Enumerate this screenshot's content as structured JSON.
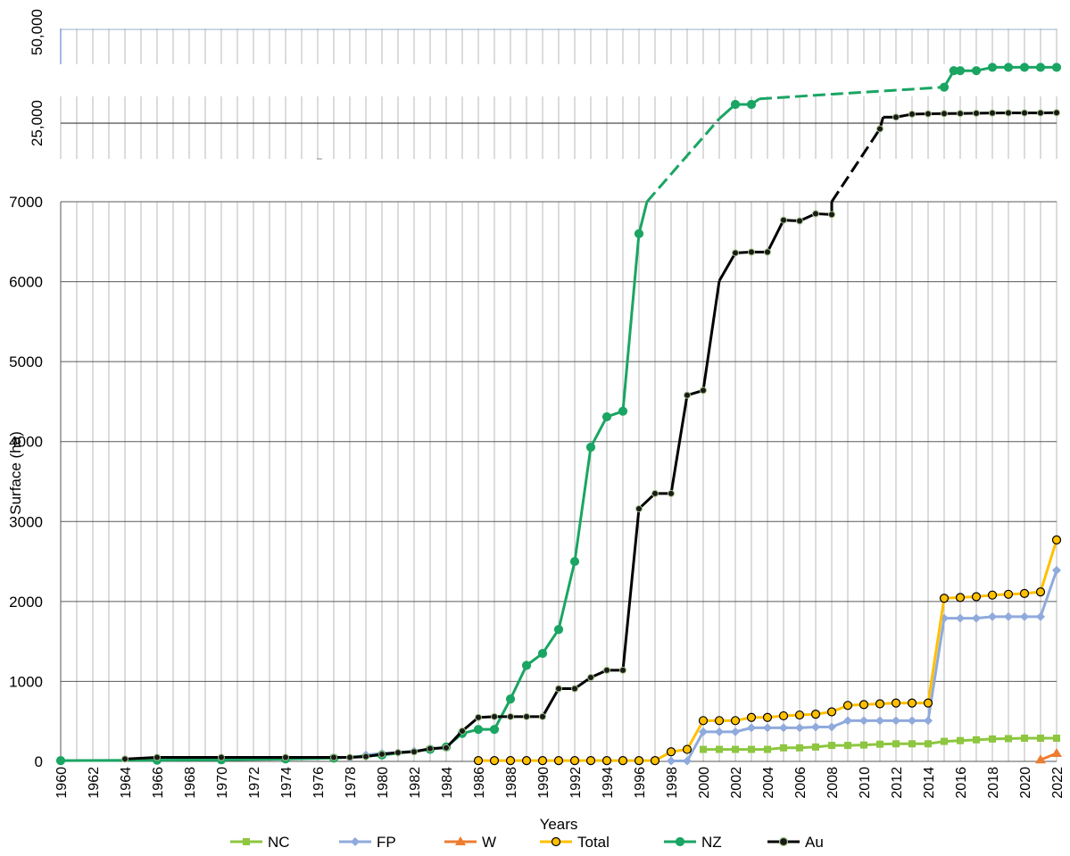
{
  "chart_data": {
    "type": "line",
    "xlabel": "Years",
    "ylabel": "Surface (ha)",
    "x_ticks": [
      "1960",
      "1962",
      "1964",
      "1966",
      "1968",
      "1970",
      "1972",
      "1974",
      "1976",
      "1978",
      "1980",
      "1982",
      "1984",
      "1986",
      "1988",
      "1990",
      "1992",
      "1994",
      "1996",
      "1998",
      "2000",
      "2002",
      "2004",
      "2006",
      "2008",
      "2010",
      "2012",
      "2014",
      "2016",
      "2018",
      "2020",
      "2022"
    ],
    "y_ticks_lower": [
      "0",
      "1000",
      "2000",
      "3000",
      "4000",
      "5000",
      "6000",
      "7000"
    ],
    "y_ticks_upper": [
      "25,000",
      "50,000"
    ],
    "axis_break": true,
    "ylim_lower": [
      0,
      7000
    ],
    "ylim_upper": [
      25000,
      50000
    ],
    "legend_position": "bottom",
    "colors": {
      "NC": "#8dc63f",
      "FP": "#8faadc",
      "W": "#ed7d31",
      "Total": "#ffc000",
      "NZ": "#1aa563",
      "Au": "#000000"
    },
    "series": [
      {
        "name": "NC",
        "points": [
          [
            2000,
            150
          ],
          [
            2001,
            150
          ],
          [
            2002,
            150
          ],
          [
            2003,
            150
          ],
          [
            2004,
            150
          ],
          [
            2005,
            170
          ],
          [
            2006,
            170
          ],
          [
            2007,
            180
          ],
          [
            2008,
            200
          ],
          [
            2009,
            200
          ],
          [
            2010,
            205
          ],
          [
            2011,
            215
          ],
          [
            2012,
            220
          ],
          [
            2013,
            220
          ],
          [
            2014,
            220
          ],
          [
            2015,
            250
          ],
          [
            2016,
            260
          ],
          [
            2017,
            270
          ],
          [
            2018,
            280
          ],
          [
            2019,
            285
          ],
          [
            2020,
            290
          ],
          [
            2021,
            290
          ],
          [
            2022,
            290
          ]
        ]
      },
      {
        "name": "FP",
        "points": [
          [
            1978,
            40
          ],
          [
            1979,
            80
          ],
          [
            1980,
            100
          ],
          [
            1981,
            110
          ],
          [
            1982,
            130
          ],
          [
            1983,
            150
          ],
          [
            1998,
            5
          ],
          [
            1999,
            5
          ],
          [
            2000,
            370
          ],
          [
            2001,
            370
          ],
          [
            2002,
            370
          ],
          [
            2003,
            420
          ],
          [
            2004,
            420
          ],
          [
            2005,
            420
          ],
          [
            2006,
            420
          ],
          [
            2007,
            430
          ],
          [
            2008,
            430
          ],
          [
            2009,
            510
          ],
          [
            2010,
            510
          ],
          [
            2011,
            510
          ],
          [
            2012,
            510
          ],
          [
            2013,
            510
          ],
          [
            2014,
            510
          ],
          [
            2015,
            1790
          ],
          [
            2016,
            1790
          ],
          [
            2017,
            1790
          ],
          [
            2018,
            1810
          ],
          [
            2019,
            1810
          ],
          [
            2020,
            1810
          ],
          [
            2021,
            1810
          ],
          [
            2022,
            2390
          ]
        ]
      },
      {
        "name": "W",
        "points": [
          [
            2021,
            20
          ],
          [
            2022,
            100
          ]
        ]
      },
      {
        "name": "Total",
        "points": [
          [
            1986,
            10
          ],
          [
            1987,
            10
          ],
          [
            1988,
            10
          ],
          [
            1989,
            10
          ],
          [
            1990,
            10
          ],
          [
            1991,
            10
          ],
          [
            1992,
            10
          ],
          [
            1993,
            10
          ],
          [
            1994,
            10
          ],
          [
            1995,
            10
          ],
          [
            1996,
            10
          ],
          [
            1997,
            10
          ],
          [
            1998,
            120
          ],
          [
            1999,
            150
          ],
          [
            2000,
            510
          ],
          [
            2001,
            510
          ],
          [
            2002,
            510
          ],
          [
            2003,
            550
          ],
          [
            2004,
            550
          ],
          [
            2005,
            570
          ],
          [
            2006,
            580
          ],
          [
            2007,
            590
          ],
          [
            2008,
            620
          ],
          [
            2009,
            700
          ],
          [
            2010,
            710
          ],
          [
            2011,
            720
          ],
          [
            2012,
            730
          ],
          [
            2013,
            730
          ],
          [
            2014,
            730
          ],
          [
            2015,
            2040
          ],
          [
            2016,
            2050
          ],
          [
            2017,
            2060
          ],
          [
            2018,
            2080
          ],
          [
            2019,
            2090
          ],
          [
            2020,
            2100
          ],
          [
            2021,
            2120
          ],
          [
            2022,
            2770
          ]
        ]
      },
      {
        "name": "NZ",
        "points": [
          [
            1960,
            10
          ],
          [
            1966,
            15
          ],
          [
            1970,
            20
          ],
          [
            1974,
            30
          ],
          [
            1977,
            40
          ],
          [
            1980,
            80
          ],
          [
            1983,
            150
          ],
          [
            1984,
            180
          ],
          [
            1985,
            350
          ],
          [
            1986,
            400
          ],
          [
            1987,
            400
          ],
          [
            1988,
            780
          ],
          [
            1989,
            1200
          ],
          [
            1990,
            1350
          ],
          [
            1991,
            1650
          ],
          [
            1992,
            2500
          ],
          [
            1993,
            3930
          ],
          [
            1994,
            4310
          ],
          [
            1995,
            4380
          ],
          [
            1996,
            6600
          ],
          [
            1996.5,
            7000
          ],
          [
            2001,
            26200
          ],
          [
            2002,
            30000
          ],
          [
            2003,
            30000
          ],
          [
            2003.5,
            31500
          ],
          [
            2015,
            34600
          ],
          [
            2015.6,
            39000
          ],
          [
            2016,
            39000
          ],
          [
            2017,
            39000
          ],
          [
            2018,
            39900
          ],
          [
            2019,
            39900
          ],
          [
            2020,
            39900
          ],
          [
            2021,
            39900
          ],
          [
            2022,
            39900
          ]
        ]
      },
      {
        "name": "Au",
        "points": [
          [
            1964,
            30
          ],
          [
            1966,
            50
          ],
          [
            1970,
            50
          ],
          [
            1974,
            50
          ],
          [
            1977,
            50
          ],
          [
            1978,
            50
          ],
          [
            1979,
            60
          ],
          [
            1980,
            90
          ],
          [
            1981,
            110
          ],
          [
            1982,
            120
          ],
          [
            1983,
            160
          ],
          [
            1984,
            170
          ],
          [
            1985,
            380
          ],
          [
            1986,
            550
          ],
          [
            1987,
            560
          ],
          [
            1988,
            560
          ],
          [
            1989,
            560
          ],
          [
            1990,
            560
          ],
          [
            1991,
            910
          ],
          [
            1992,
            910
          ],
          [
            1993,
            1050
          ],
          [
            1994,
            1140
          ],
          [
            1995,
            1140
          ],
          [
            1996,
            3160
          ],
          [
            1997,
            3350
          ],
          [
            1998,
            3350
          ],
          [
            1999,
            4580
          ],
          [
            2000,
            4640
          ],
          [
            2001,
            6010
          ],
          [
            2002,
            6360
          ],
          [
            2003,
            6370
          ],
          [
            2004,
            6370
          ],
          [
            2005,
            6770
          ],
          [
            2006,
            6760
          ],
          [
            2007,
            6850
          ],
          [
            2008,
            6840
          ],
          [
            2008,
            7000
          ],
          [
            2011,
            23700
          ],
          [
            2011.2,
            26600
          ],
          [
            2012,
            26600
          ],
          [
            2013,
            27400
          ],
          [
            2014,
            27500
          ],
          [
            2015,
            27550
          ],
          [
            2016,
            27600
          ],
          [
            2017,
            27650
          ],
          [
            2018,
            27700
          ],
          [
            2019,
            27750
          ],
          [
            2020,
            27750
          ],
          [
            2021,
            27750
          ],
          [
            2022,
            27800
          ]
        ]
      }
    ],
    "legend": [
      "NC",
      "FP",
      "W",
      "Total",
      "NZ",
      "Au"
    ]
  }
}
